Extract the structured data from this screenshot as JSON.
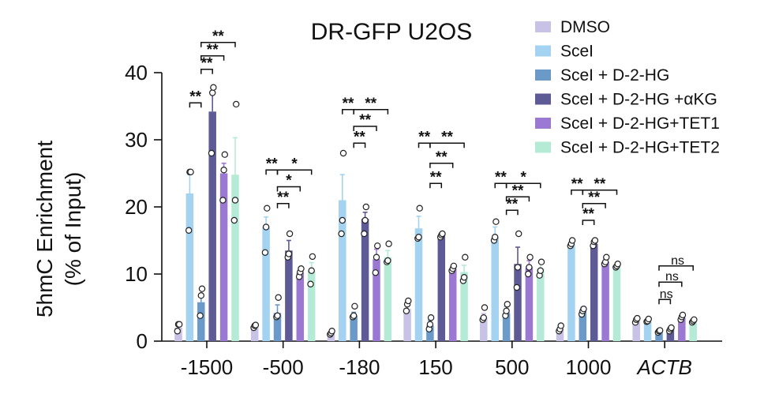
{
  "chart_data": {
    "type": "bar",
    "title": "DR-GFP U2OS",
    "ylabel_line1": "5hmC Enrichment",
    "ylabel_line2": "(% of Input)",
    "xlabel": "",
    "ylim": [
      0,
      40
    ],
    "yticks": [
      "0",
      "10",
      "20",
      "30",
      "40"
    ],
    "categories": [
      "-1500",
      "-500",
      "-180",
      "150",
      "500",
      "1000",
      "ACTB"
    ],
    "series": [
      {
        "name": "DMSO",
        "color": "#c7c2e6",
        "values": [
          2.0,
          2.2,
          1.2,
          4.8,
          3.5,
          1.8,
          3.0
        ],
        "errors": [
          0.5,
          0.3,
          0.2,
          0.7,
          0.6,
          0.3,
          0.3
        ],
        "points": [
          [
            1.5,
            2.5,
            2.5
          ],
          [
            2.0,
            2.3,
            2.4
          ],
          [
            1.0,
            1.2,
            1.5
          ],
          [
            4.5,
            5.5,
            6.0
          ],
          [
            3.2,
            3.5,
            5.0
          ],
          [
            1.5,
            1.8,
            2.3
          ],
          [
            2.8,
            3.2,
            3.4
          ]
        ]
      },
      {
        "name": "SceI",
        "color": "#a4d2f1",
        "values": [
          22.0,
          17.0,
          21.0,
          16.8,
          15.5,
          14.5,
          3.0
        ],
        "errors": [
          2.8,
          1.5,
          3.8,
          1.8,
          1.5,
          0.5,
          0.2
        ],
        "points": [
          [
            16.5,
            25.2,
            25.2
          ],
          [
            13.2,
            17.0,
            19.8
          ],
          [
            16.0,
            18.0,
            28.0
          ],
          [
            15.3,
            15.5,
            19.8
          ],
          [
            15.0,
            15.5,
            17.8
          ],
          [
            14.2,
            14.5,
            15.0
          ],
          [
            2.9,
            3.0,
            3.3
          ]
        ]
      },
      {
        "name": "SceI + D-2-HG",
        "color": "#6b9ac9",
        "values": [
          5.8,
          4.2,
          3.8,
          2.3,
          4.2,
          4.5,
          1.5
        ],
        "errors": [
          1.2,
          1.2,
          0.5,
          0.8,
          1.0,
          0.5,
          0.2
        ],
        "points": [
          [
            3.8,
            6.8,
            7.8
          ],
          [
            3.6,
            3.8,
            6.5
          ],
          [
            3.6,
            3.8,
            5.2
          ],
          [
            1.8,
            2.5,
            3.5
          ],
          [
            3.8,
            4.5,
            5.5
          ],
          [
            4.0,
            4.5,
            4.8
          ],
          [
            1.3,
            1.5,
            1.6
          ]
        ]
      },
      {
        "name": "SceI + D-2-HG +αKG",
        "color": "#5e5a96",
        "values": [
          34.2,
          13.5,
          18.2,
          15.8,
          11.5,
          14.5,
          1.8
        ],
        "errors": [
          3.5,
          1.5,
          1.0,
          0.3,
          2.5,
          0.5,
          0.2
        ],
        "points": [
          [
            28.0,
            37.0,
            37.8
          ],
          [
            12.5,
            13.0,
            16.0
          ],
          [
            16.0,
            18.0,
            20.0
          ],
          [
            15.5,
            15.8,
            16.0
          ],
          [
            8.0,
            11.0,
            16.0
          ],
          [
            14.2,
            14.8,
            15.0
          ],
          [
            1.5,
            1.8,
            2.0
          ]
        ]
      },
      {
        "name": "SceI + D-2-HG+TET1",
        "color": "#9b79d3",
        "values": [
          25.0,
          10.2,
          12.2,
          10.8,
          11.0,
          11.8,
          3.5
        ],
        "errors": [
          1.5,
          0.7,
          1.5,
          0.5,
          1.0,
          0.6,
          0.3
        ],
        "points": [
          [
            21.0,
            25.5,
            27.8
          ],
          [
            9.6,
            10.3,
            10.8
          ],
          [
            10.2,
            12.5,
            14.2
          ],
          [
            10.5,
            10.8,
            11.2
          ],
          [
            10.0,
            11.0,
            12.5
          ],
          [
            11.5,
            11.8,
            12.5
          ],
          [
            3.2,
            3.6,
            3.9
          ]
        ]
      },
      {
        "name": "SceI + D-2-HG+TET2",
        "color": "#b5ead6",
        "values": [
          24.8,
          10.5,
          12.5,
          10.3,
          10.8,
          11.2,
          3.0
        ],
        "errors": [
          5.5,
          1.2,
          1.0,
          1.0,
          1.0,
          0.4,
          0.2
        ],
        "points": [
          [
            18.0,
            21.0,
            35.3
          ],
          [
            8.5,
            10.5,
            12.6
          ],
          [
            11.8,
            12.0,
            14.5
          ],
          [
            9.0,
            9.5,
            12.5
          ],
          [
            9.8,
            10.5,
            11.8
          ],
          [
            11.0,
            11.2,
            11.5
          ],
          [
            2.8,
            3.0,
            3.2
          ]
        ]
      }
    ],
    "annotations": [
      {
        "group": 0,
        "from": 1,
        "to": 2,
        "y": 35.5,
        "label": "**"
      },
      {
        "group": 0,
        "from": 2,
        "to": 3,
        "y": 40.5,
        "label": "**"
      },
      {
        "group": 0,
        "from": 2,
        "to": 4,
        "y": 42.5,
        "label": "**"
      },
      {
        "group": 0,
        "from": 2,
        "to": 5,
        "y": 44.5,
        "label": "**"
      },
      {
        "group": 1,
        "from": 1,
        "to": 2,
        "y": 25.5,
        "label": "**"
      },
      {
        "group": 1,
        "from": 2,
        "to": 3,
        "y": 20.5,
        "label": "**"
      },
      {
        "group": 1,
        "from": 2,
        "to": 4,
        "y": 23.0,
        "label": "*"
      },
      {
        "group": 1,
        "from": 2,
        "to": 5,
        "y": 25.5,
        "label": "*"
      },
      {
        "group": 2,
        "from": 1,
        "to": 2,
        "y": 34.5,
        "label": "**"
      },
      {
        "group": 2,
        "from": 2,
        "to": 3,
        "y": 29.5,
        "label": "**"
      },
      {
        "group": 2,
        "from": 2,
        "to": 4,
        "y": 32.0,
        "label": "**"
      },
      {
        "group": 2,
        "from": 2,
        "to": 5,
        "y": 34.5,
        "label": "**"
      },
      {
        "group": 3,
        "from": 1,
        "to": 2,
        "y": 29.5,
        "label": "**"
      },
      {
        "group": 3,
        "from": 2,
        "to": 3,
        "y": 23.5,
        "label": "**"
      },
      {
        "group": 3,
        "from": 2,
        "to": 4,
        "y": 26.5,
        "label": "**"
      },
      {
        "group": 3,
        "from": 2,
        "to": 5,
        "y": 29.5,
        "label": "**"
      },
      {
        "group": 4,
        "from": 1,
        "to": 2,
        "y": 23.5,
        "label": "**"
      },
      {
        "group": 4,
        "from": 2,
        "to": 3,
        "y": 19.5,
        "label": "**"
      },
      {
        "group": 4,
        "from": 2,
        "to": 4,
        "y": 21.5,
        "label": "**"
      },
      {
        "group": 4,
        "from": 2,
        "to": 5,
        "y": 23.5,
        "label": "*"
      },
      {
        "group": 5,
        "from": 1,
        "to": 2,
        "y": 22.5,
        "label": "**"
      },
      {
        "group": 5,
        "from": 2,
        "to": 3,
        "y": 18.0,
        "label": "**"
      },
      {
        "group": 5,
        "from": 2,
        "to": 4,
        "y": 20.5,
        "label": "**"
      },
      {
        "group": 5,
        "from": 2,
        "to": 5,
        "y": 22.5,
        "label": "**"
      },
      {
        "group": 6,
        "from": 2,
        "to": 3,
        "y": 6.2,
        "label": "ns"
      },
      {
        "group": 6,
        "from": 2,
        "to": 4,
        "y": 8.8,
        "label": "ns"
      },
      {
        "group": 6,
        "from": 2,
        "to": 5,
        "y": 11.2,
        "label": "ns"
      }
    ],
    "italic_categories": [
      "ACTB"
    ],
    "legend_position": "top-right",
    "grid": false
  }
}
